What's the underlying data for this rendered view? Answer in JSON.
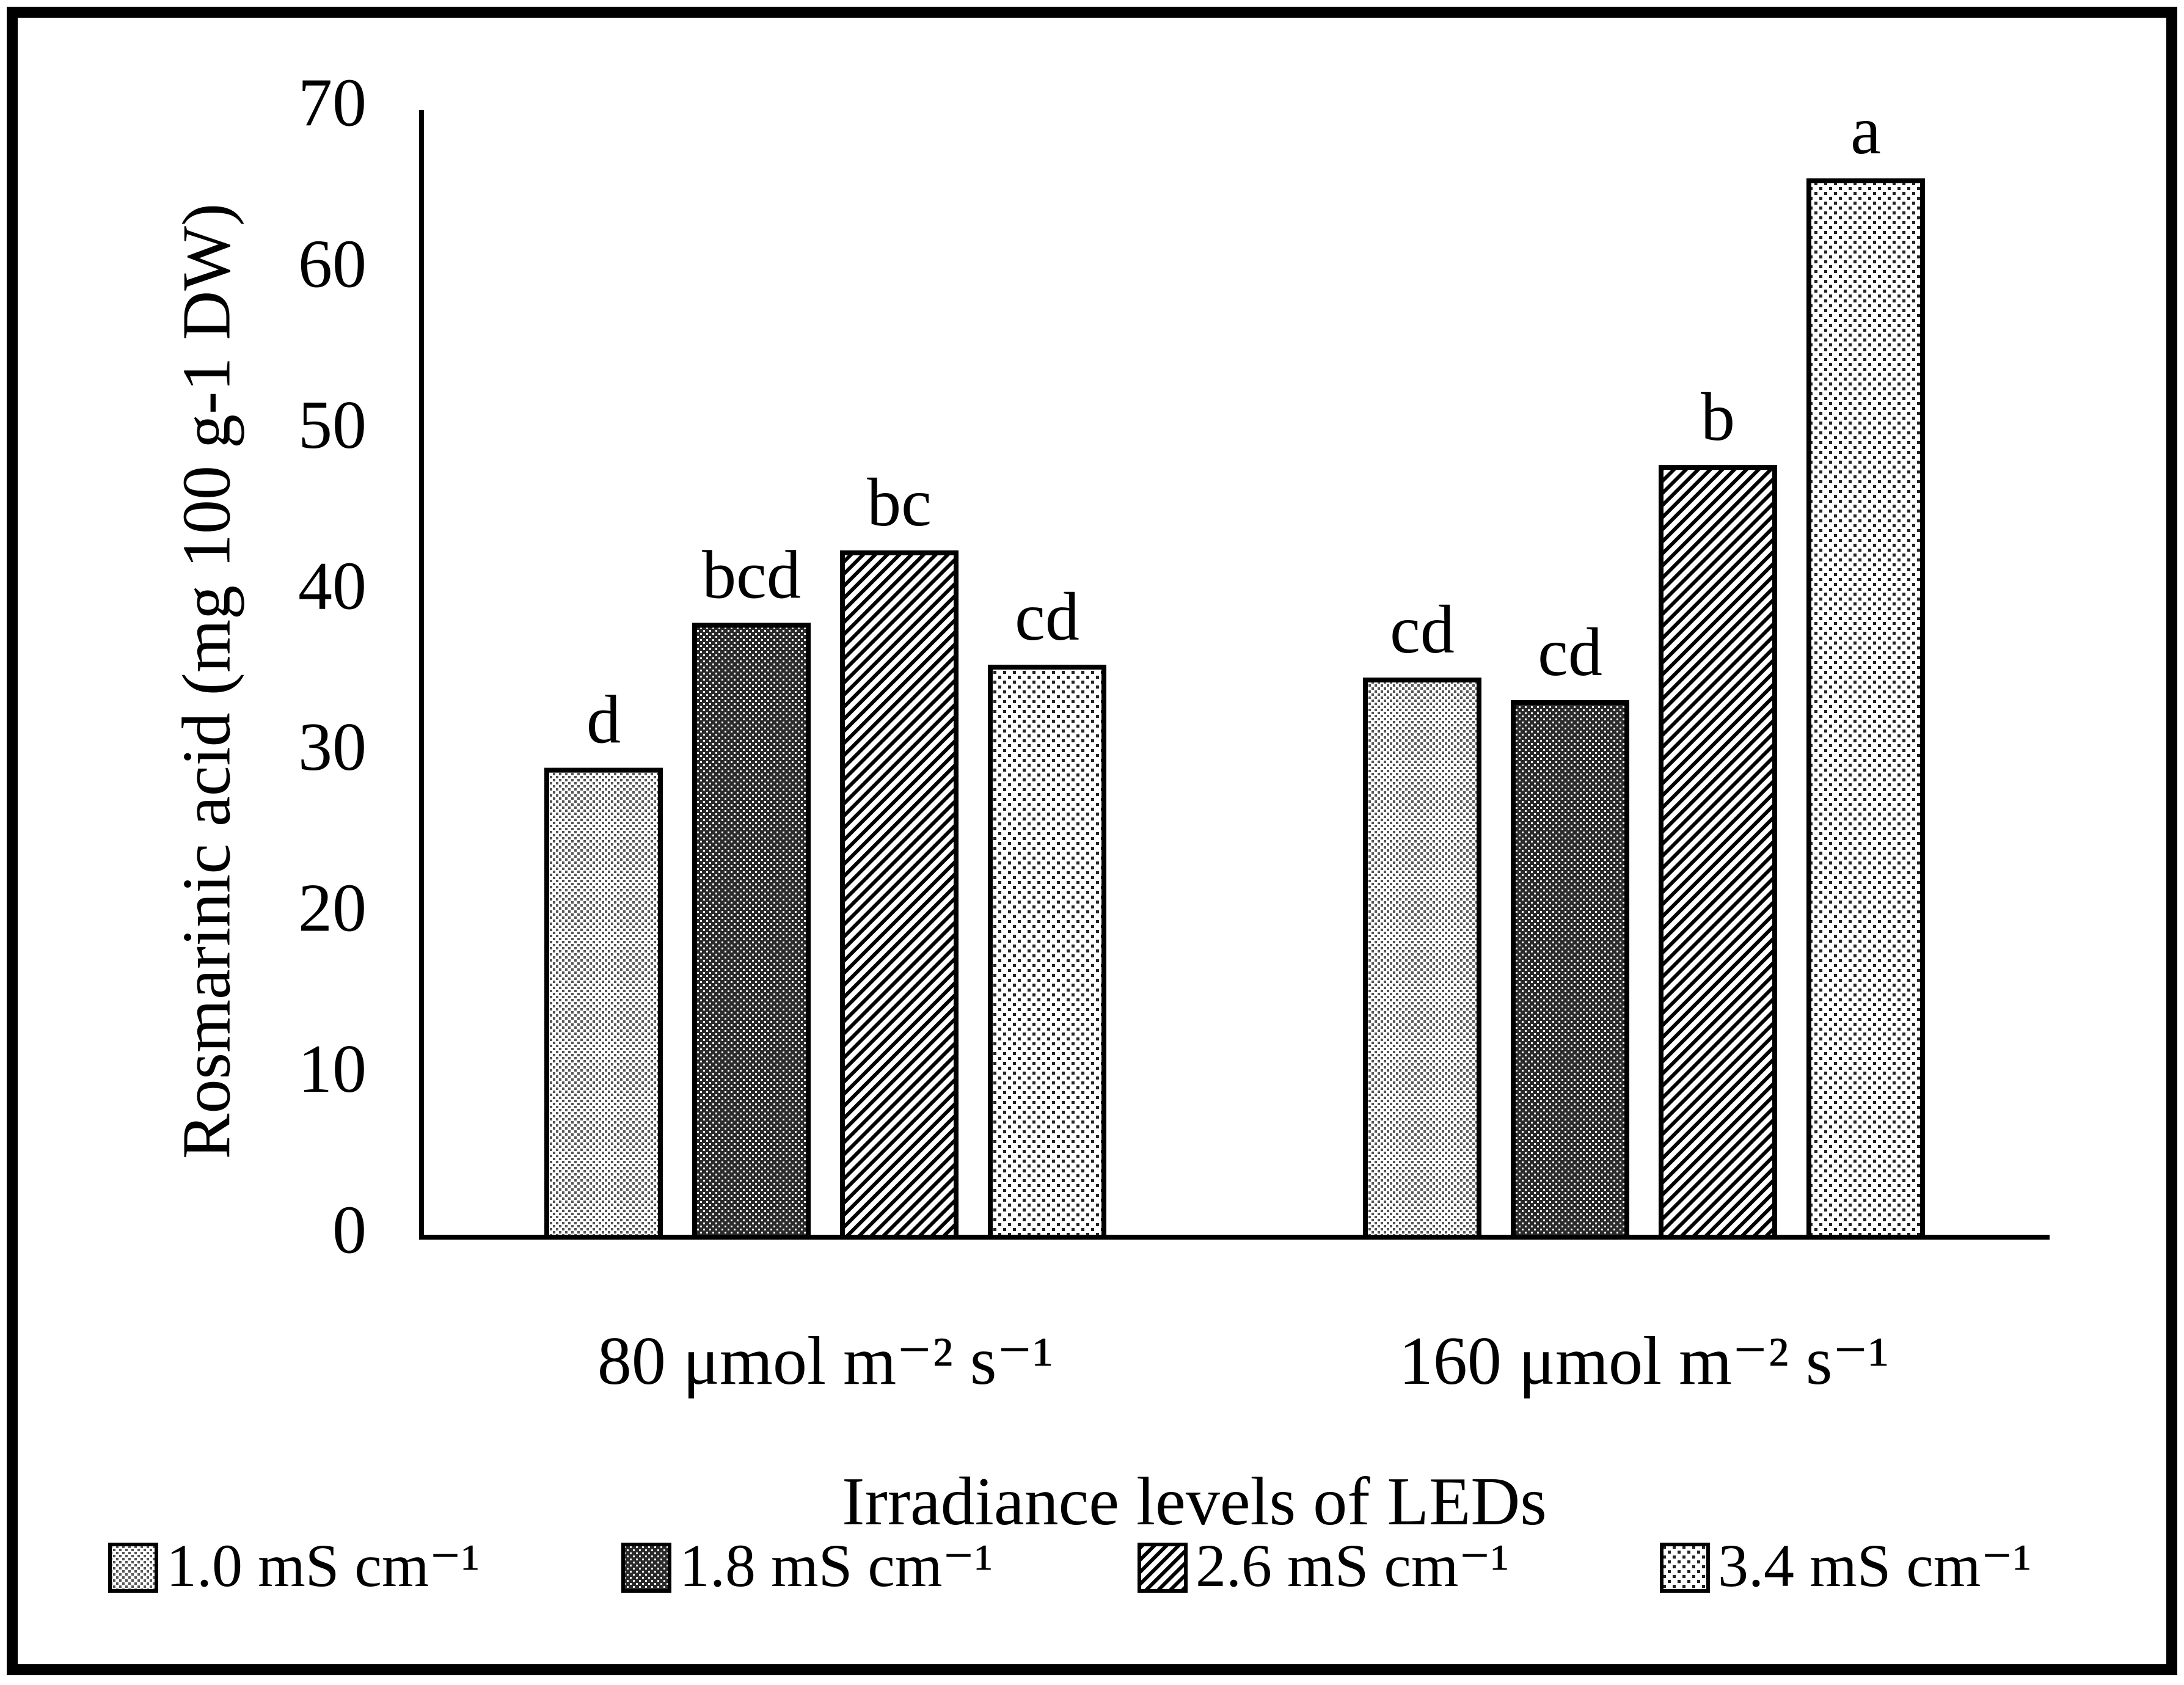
{
  "chart_data": {
    "type": "bar",
    "title": "",
    "xlabel": "Irradiance levels of LEDs",
    "ylabel": "Rosmarinic acid (mg 100 g-1 DW)",
    "ylim": [
      0,
      70
    ],
    "yticks": [
      "0",
      "10",
      "20",
      "30",
      "40",
      "50",
      "60",
      "70"
    ],
    "categories": [
      "80 μmol m⁻² s⁻¹",
      "160 μmol m⁻² s⁻¹"
    ],
    "series": [
      {
        "name": "1.0 mS cm⁻¹",
        "pattern": "fine-dots",
        "values": [
          29,
          34.6
        ],
        "labels": [
          "d",
          "cd"
        ]
      },
      {
        "name": "1.8 mS cm⁻¹",
        "pattern": "dark-mesh",
        "values": [
          38,
          33.2
        ],
        "labels": [
          "bcd",
          "cd"
        ]
      },
      {
        "name": "2.6 mS cm⁻¹",
        "pattern": "diagonal",
        "values": [
          42.5,
          47.8
        ],
        "labels": [
          "bc",
          "b"
        ]
      },
      {
        "name": "3.4 mS cm⁻¹",
        "pattern": "sparse-dots",
        "values": [
          35.4,
          65.6
        ],
        "labels": [
          "cd",
          "a"
        ]
      }
    ],
    "legend_position": "bottom",
    "grid": false
  },
  "colors": {
    "ink": "#000000",
    "background": "#ffffff"
  }
}
